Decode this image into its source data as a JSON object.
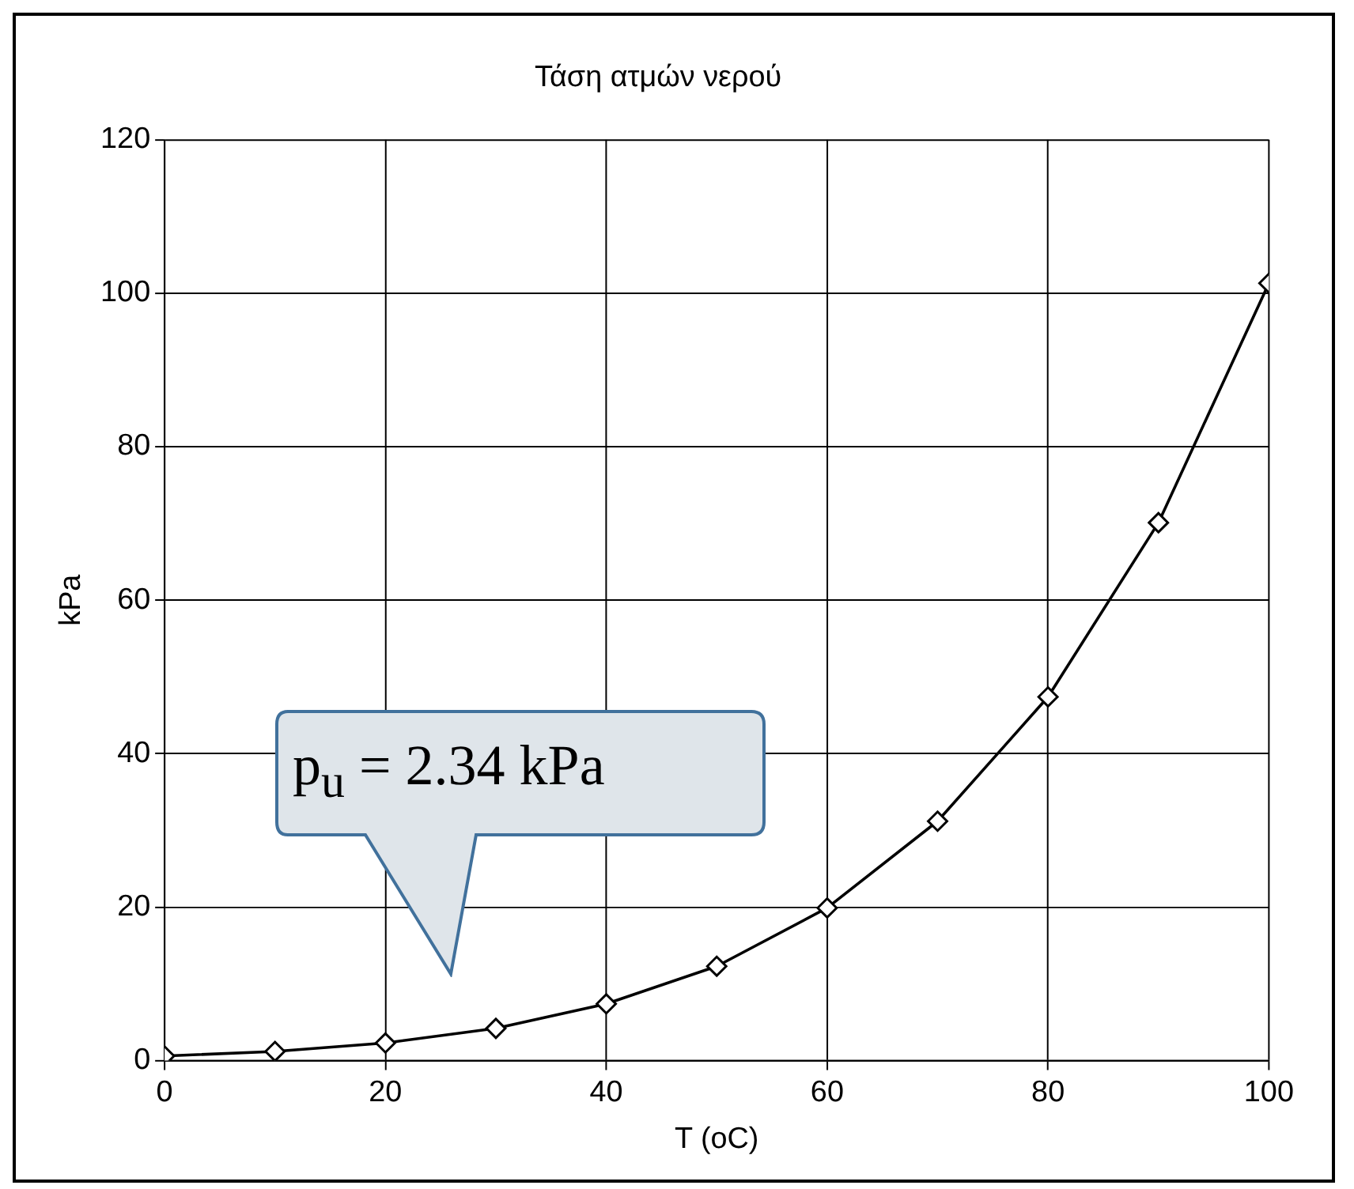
{
  "chart_data": {
    "type": "line",
    "title": "Τάση ατμών νερού",
    "xlabel": "T (oC)",
    "ylabel": "kPa",
    "x": [
      0,
      10,
      20,
      30,
      40,
      50,
      60,
      70,
      80,
      90,
      100
    ],
    "series": [
      {
        "color": "#000000",
        "values": [
          0.6,
          1.2,
          2.3,
          4.2,
          7.4,
          12.3,
          19.9,
          31.2,
          47.4,
          70.1,
          101.3
        ]
      }
    ],
    "xlim": [
      0,
      100
    ],
    "xticks": [
      0,
      20,
      40,
      60,
      80,
      100
    ],
    "ylim": [
      0,
      120
    ],
    "yticks": [
      0,
      20,
      40,
      60,
      80,
      100,
      120
    ],
    "grid": true,
    "legend": false,
    "marker": "diamond",
    "line_style": "solid",
    "annotations": [
      "p$_{u}$ = 2.34 kPa"
    ]
  }
}
